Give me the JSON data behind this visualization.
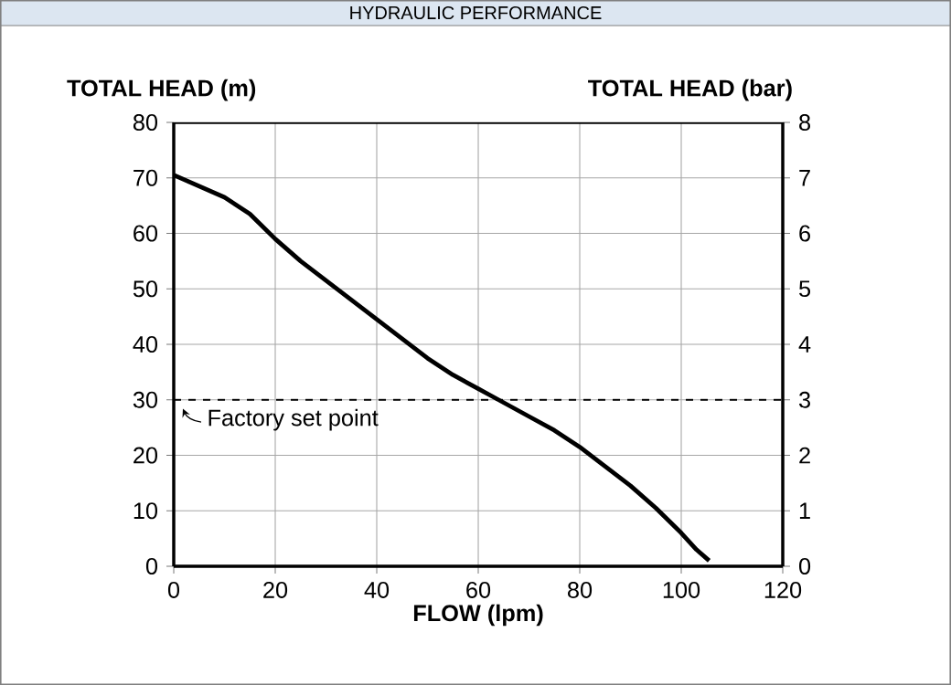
{
  "chart_data": {
    "type": "line",
    "title": "HYDRAULIC PERFORMANCE",
    "xlabel": "FLOW (lpm)",
    "ylabel": "TOTAL HEAD (m)",
    "y2label": "TOTAL HEAD (bar)",
    "x": [
      0,
      5,
      10,
      15,
      20,
      25,
      30,
      35,
      40,
      45,
      50,
      55,
      60,
      64,
      70,
      75,
      80,
      85,
      90,
      95,
      100,
      103,
      105.5
    ],
    "series": [
      {
        "color": "#000000",
        "values": [
          70.5,
          68.5,
          66.5,
          63.5,
          59,
          55,
          51.5,
          48,
          44.5,
          41,
          37.5,
          34.5,
          32,
          30,
          27,
          24.5,
          21.5,
          18,
          14.5,
          10.5,
          6,
          3,
          1
        ]
      }
    ],
    "xlim": [
      0,
      120
    ],
    "xticks": [
      0,
      20,
      40,
      60,
      80,
      100,
      120
    ],
    "ylim": [
      0,
      80
    ],
    "yticks": [
      0,
      10,
      20,
      30,
      40,
      50,
      60,
      70,
      80
    ],
    "y2lim": [
      0,
      8
    ],
    "y2ticks": [
      0,
      1,
      2,
      3,
      4,
      5,
      6,
      7,
      8
    ],
    "ref_lines": [
      {
        "axis": "y",
        "value": 30,
        "label": "Factory set point",
        "line_style": "dashed",
        "color": "#000000"
      }
    ],
    "grid": true,
    "marker": "none",
    "line_style": "solid"
  }
}
